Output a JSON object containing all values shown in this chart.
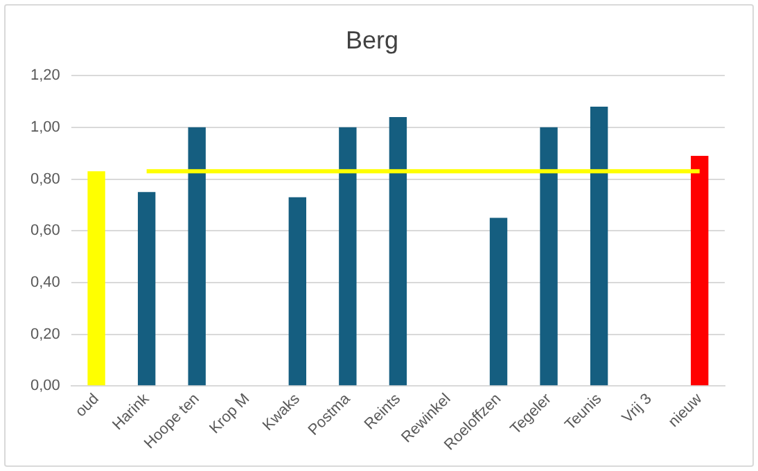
{
  "chart_data": {
    "type": "bar",
    "title": "Berg",
    "categories": [
      "oud",
      "Harink",
      "Hoope ten",
      "Krop M",
      "Kwaks",
      "Postma",
      "Reints",
      "Rewinkel",
      "Roeloffzen",
      "Tegeler",
      "Teunis",
      "Vrij 3",
      "nieuw"
    ],
    "series": [
      {
        "values": [
          0.83,
          0.75,
          1.0,
          null,
          0.73,
          1.0,
          1.04,
          null,
          0.65,
          1.0,
          1.08,
          null,
          0.89
        ],
        "colors": [
          "#ffff00",
          "#155e80",
          "#155e80",
          "#155e80",
          "#155e80",
          "#155e80",
          "#155e80",
          "#155e80",
          "#155e80",
          "#155e80",
          "#155e80",
          "#155e80",
          "#ff0000"
        ]
      },
      {
        "type": "line",
        "color": "#ffff00",
        "values": [
          null,
          0.83,
          0.83,
          0.83,
          0.83,
          0.83,
          0.83,
          0.83,
          0.83,
          0.83,
          0.83,
          0.83,
          0.83
        ]
      }
    ],
    "ylim": [
      0,
      1.2
    ],
    "yticks": [
      {
        "value": 0,
        "label": "0,00"
      },
      {
        "value": 0.2,
        "label": "0,20"
      },
      {
        "value": 0.4,
        "label": "0,40"
      },
      {
        "value": 0.6,
        "label": "0,60"
      },
      {
        "value": 0.8,
        "label": "0,80"
      },
      {
        "value": 1.0,
        "label": "1,00"
      },
      {
        "value": 1.2,
        "label": "1,20"
      }
    ],
    "grid": "y",
    "legend": false,
    "marker": "none"
  }
}
